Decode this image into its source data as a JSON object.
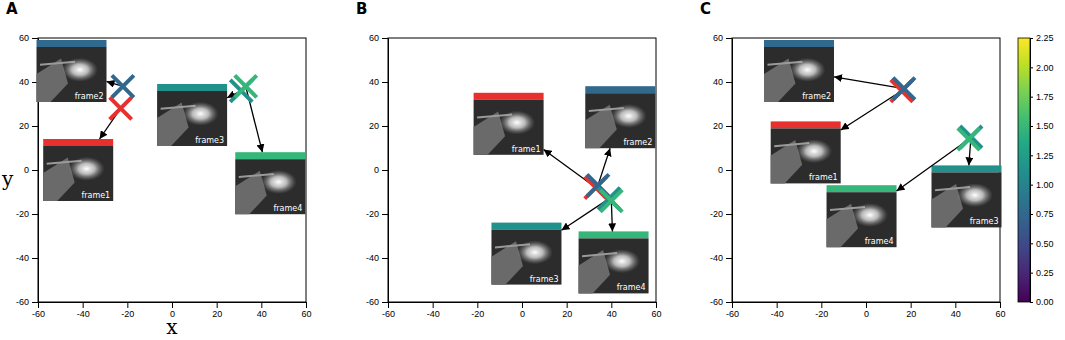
{
  "chart_data": [
    {
      "type": "scatter",
      "title": "A",
      "xlabel": "x",
      "ylabel": "y",
      "xlim": [
        -60,
        60
      ],
      "ylim": [
        -60,
        60
      ],
      "xticks": [
        -60,
        -40,
        -20,
        0,
        20,
        40,
        60
      ],
      "yticks": [
        -60,
        -40,
        -20,
        0,
        20,
        40,
        60
      ],
      "marker": "x",
      "frames": [
        {
          "label": "frame1",
          "color": "#e8312f",
          "x": -23,
          "y": 28,
          "image_x": -42,
          "image_y": 0
        },
        {
          "label": "frame2",
          "color": "#31688e",
          "x": -22,
          "y": 38,
          "image_x": -45,
          "image_y": 45
        },
        {
          "label": "frame3",
          "color": "#21918c",
          "x": 31,
          "y": 36,
          "image_x": 9,
          "image_y": 25
        },
        {
          "label": "frame4",
          "color": "#35b779",
          "x": 33,
          "y": 38,
          "image_x": 44,
          "image_y": -6
        }
      ]
    },
    {
      "type": "scatter",
      "title": "B",
      "xlim": [
        -60,
        60
      ],
      "ylim": [
        -60,
        60
      ],
      "xticks": [
        -60,
        -40,
        -20,
        0,
        20,
        40,
        60
      ],
      "yticks": [
        -60,
        -40,
        -20,
        0,
        20,
        40,
        60
      ],
      "marker": "x",
      "frames": [
        {
          "label": "frame1",
          "color": "#e8312f",
          "x": 33,
          "y": -8,
          "image_x": -6,
          "image_y": 21
        },
        {
          "label": "frame2",
          "color": "#31688e",
          "x": 34,
          "y": -7,
          "image_x": 44,
          "image_y": 24
        },
        {
          "label": "frame3",
          "color": "#21918c",
          "x": 39,
          "y": -13,
          "image_x": 2,
          "image_y": -38
        },
        {
          "label": "frame4",
          "color": "#35b779",
          "x": 40,
          "y": -14,
          "image_x": 41,
          "image_y": -42
        }
      ]
    },
    {
      "type": "scatter",
      "title": "C",
      "xlim": [
        -60,
        60
      ],
      "ylim": [
        -60,
        60
      ],
      "xticks": [
        -60,
        -40,
        -20,
        0,
        20,
        40,
        60
      ],
      "yticks": [
        -60,
        -40,
        -20,
        0,
        20,
        40,
        60
      ],
      "marker": "x",
      "frames": [
        {
          "label": "frame1",
          "color": "#e8312f",
          "x": 16,
          "y": 36,
          "image_x": -27,
          "image_y": 8
        },
        {
          "label": "frame2",
          "color": "#31688e",
          "x": 17,
          "y": 37,
          "image_x": -30,
          "image_y": 45
        },
        {
          "label": "frame3",
          "color": "#21918c",
          "x": 47,
          "y": 15,
          "image_x": 45,
          "image_y": -12
        },
        {
          "label": "frame4",
          "color": "#35b779",
          "x": 46,
          "y": 14,
          "image_x": -2,
          "image_y": -21
        }
      ],
      "colorbar": {
        "range": [
          0,
          2.25
        ],
        "ticks": [
          {
            "value": 0,
            "label": "0.00"
          },
          {
            "value": 0.25,
            "label": "0.25"
          },
          {
            "value": 0.5,
            "label": "0.50"
          },
          {
            "value": 0.75,
            "label": "0.75"
          },
          {
            "value": 1,
            "label": "1.00"
          },
          {
            "value": 1.25,
            "label": "1.25"
          },
          {
            "value": 1.5,
            "label": "1.50"
          },
          {
            "value": 1.75,
            "label": "1.75"
          },
          {
            "value": 2,
            "label": "2.00"
          },
          {
            "value": 2.25,
            "label": "2.25"
          }
        ]
      }
    }
  ]
}
